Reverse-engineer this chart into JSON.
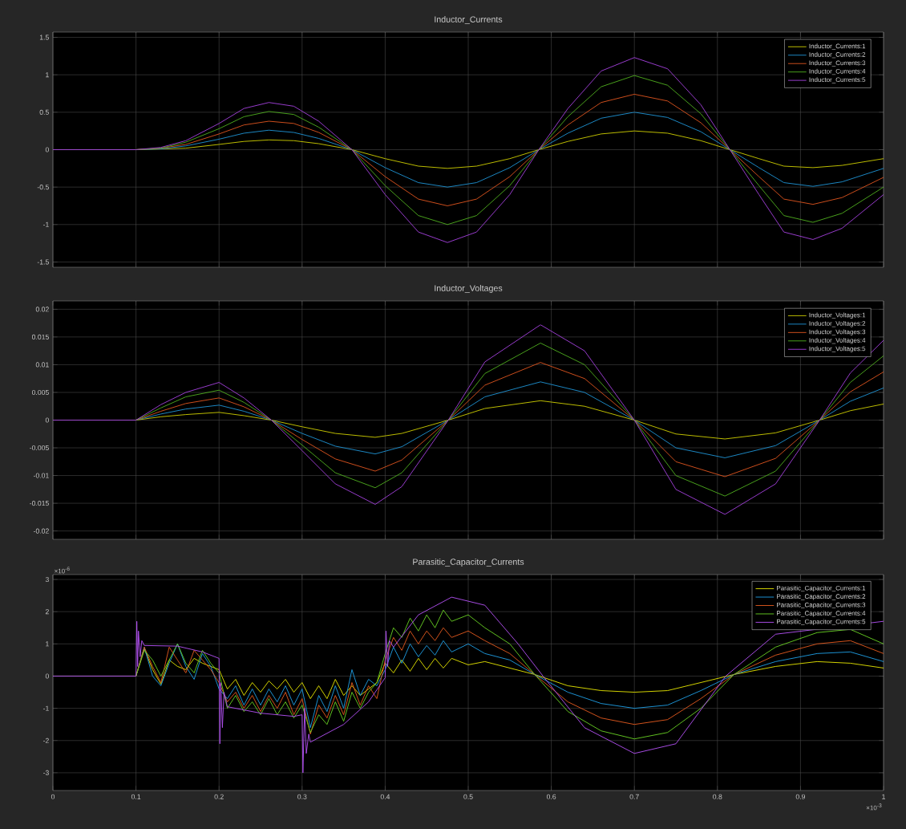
{
  "chart_data": [
    {
      "type": "line",
      "title": "Inductor_Currents",
      "grid": true,
      "legend": "top right",
      "tick_labels": "y",
      "xlim": [
        0,
        1
      ],
      "xticks": [
        0,
        0.1,
        0.2,
        0.3,
        0.4,
        0.5,
        0.6,
        0.7,
        0.8,
        0.9,
        1
      ],
      "ylim": [
        -1.57,
        1.57
      ],
      "yticks": [
        -1.5,
        -1,
        -0.5,
        0,
        0.5,
        1,
        1.5
      ],
      "x": [
        0,
        0.1,
        0.13,
        0.16,
        0.2,
        0.23,
        0.26,
        0.29,
        0.32,
        0.36,
        0.4,
        0.44,
        0.475,
        0.51,
        0.55,
        0.585,
        0.62,
        0.66,
        0.7,
        0.74,
        0.78,
        0.815,
        0.85,
        0.88,
        0.915,
        0.95,
        1.0
      ],
      "series": [
        {
          "name": "Inductor_Currents:1",
          "color": "#c8c800",
          "values": [
            0,
            0,
            0.01,
            0.02,
            0.07,
            0.11,
            0.13,
            0.12,
            0.08,
            0,
            -0.12,
            -0.22,
            -0.25,
            -0.22,
            -0.12,
            0,
            0.11,
            0.21,
            0.25,
            0.22,
            0.12,
            0,
            -0.12,
            -0.22,
            -0.24,
            -0.21,
            -0.12
          ]
        },
        {
          "name": "Inductor_Currents:2",
          "color": "#1e90d0",
          "values": [
            0,
            0,
            0.01,
            0.05,
            0.14,
            0.22,
            0.26,
            0.23,
            0.15,
            0,
            -0.24,
            -0.44,
            -0.5,
            -0.44,
            -0.24,
            0,
            0.22,
            0.42,
            0.5,
            0.43,
            0.24,
            0,
            -0.24,
            -0.44,
            -0.49,
            -0.43,
            -0.25
          ]
        },
        {
          "name": "Inductor_Currents:3",
          "color": "#d9531e",
          "values": [
            0,
            0,
            0.02,
            0.07,
            0.21,
            0.33,
            0.38,
            0.35,
            0.23,
            0,
            -0.36,
            -0.66,
            -0.75,
            -0.66,
            -0.36,
            0,
            0.33,
            0.63,
            0.74,
            0.65,
            0.36,
            0,
            -0.36,
            -0.66,
            -0.73,
            -0.64,
            -0.37
          ]
        },
        {
          "name": "Inductor_Currents:4",
          "color": "#4daa1e",
          "values": [
            0,
            0,
            0.02,
            0.1,
            0.28,
            0.44,
            0.51,
            0.47,
            0.3,
            0,
            -0.48,
            -0.88,
            -1.0,
            -0.88,
            -0.48,
            0,
            0.44,
            0.84,
            0.99,
            0.86,
            0.48,
            0,
            -0.48,
            -0.88,
            -0.97,
            -0.85,
            -0.5
          ]
        },
        {
          "name": "Inductor_Currents:5",
          "color": "#a040d8",
          "values": [
            0,
            0,
            0.03,
            0.12,
            0.35,
            0.55,
            0.63,
            0.58,
            0.38,
            0,
            -0.6,
            -1.1,
            -1.24,
            -1.1,
            -0.6,
            0,
            0.55,
            1.05,
            1.23,
            1.08,
            0.6,
            0,
            -0.6,
            -1.1,
            -1.2,
            -1.05,
            -0.6
          ]
        }
      ]
    },
    {
      "type": "line",
      "title": "Inductor_Voltages",
      "grid": true,
      "legend": "top right",
      "tick_labels": "y",
      "xlim": [
        0,
        1
      ],
      "xticks": [
        0,
        0.1,
        0.2,
        0.3,
        0.4,
        0.5,
        0.6,
        0.7,
        0.8,
        0.9,
        1
      ],
      "ylim": [
        -0.0215,
        0.0215
      ],
      "yticks": [
        -0.02,
        -0.015,
        -0.01,
        -0.005,
        0,
        0.005,
        0.01,
        0.015,
        0.02
      ],
      "x": [
        0,
        0.1,
        0.13,
        0.16,
        0.2,
        0.23,
        0.263,
        0.3,
        0.34,
        0.388,
        0.42,
        0.476,
        0.52,
        0.587,
        0.64,
        0.7,
        0.75,
        0.809,
        0.87,
        0.923,
        0.96,
        1.0
      ],
      "series": [
        {
          "name": "Inductor_Voltages:1",
          "color": "#c8c800",
          "values": [
            0,
            0,
            0.0006,
            0.001,
            0.0014,
            0.0008,
            0,
            -0.0012,
            -0.0024,
            -0.0031,
            -0.0024,
            0,
            0.0021,
            0.0035,
            0.0025,
            0,
            -0.0025,
            -0.0034,
            -0.0023,
            0,
            0.0017,
            0.0029
          ]
        },
        {
          "name": "Inductor_Voltages:2",
          "color": "#1e90d0",
          "values": [
            0,
            0,
            0.0011,
            0.002,
            0.0027,
            0.0016,
            0,
            -0.0024,
            -0.0047,
            -0.0061,
            -0.0048,
            0,
            0.0042,
            0.0069,
            0.005,
            0,
            -0.005,
            -0.0068,
            -0.0046,
            0,
            0.0034,
            0.0058
          ]
        },
        {
          "name": "Inductor_Voltages:3",
          "color": "#d9531e",
          "values": [
            0,
            0,
            0.0016,
            0.003,
            0.004,
            0.0024,
            0,
            -0.0035,
            -0.007,
            -0.0092,
            -0.0072,
            0,
            0.0063,
            0.0104,
            0.0075,
            0,
            -0.0075,
            -0.0102,
            -0.0069,
            0,
            0.0051,
            0.0087
          ]
        },
        {
          "name": "Inductor_Voltages:4",
          "color": "#4daa1e",
          "values": [
            0,
            0,
            0.0022,
            0.0042,
            0.0054,
            0.0032,
            0,
            -0.0045,
            -0.0095,
            -0.0122,
            -0.0095,
            0,
            0.0084,
            0.0139,
            0.01,
            0,
            -0.01,
            -0.0137,
            -0.0092,
            0,
            0.0068,
            0.0116
          ]
        },
        {
          "name": "Inductor_Voltages:5",
          "color": "#a040d8",
          "values": [
            0,
            0,
            0.0028,
            0.005,
            0.0068,
            0.004,
            0,
            -0.0055,
            -0.0115,
            -0.0152,
            -0.012,
            0,
            0.0105,
            0.0172,
            0.0125,
            0,
            -0.0125,
            -0.017,
            -0.0115,
            0,
            0.0085,
            0.0144
          ]
        }
      ]
    },
    {
      "type": "line",
      "title": "Parasitic_Capacitor_Currents",
      "grid": true,
      "legend": "top right",
      "xlim": [
        0,
        1
      ],
      "xticks": [
        0,
        0.1,
        0.2,
        0.3,
        0.4,
        0.5,
        0.6,
        0.7,
        0.8,
        0.9,
        1
      ],
      "ylim": [
        -3.55,
        3.15
      ],
      "yticks": [
        -3,
        -2,
        -1,
        0,
        1,
        2,
        3
      ],
      "annotations": [
        "×10$^{-6}$",
        "×10$^{-3}$"
      ],
      "x": [
        0,
        0.1,
        0.11,
        0.12,
        0.13,
        0.14,
        0.15,
        0.16,
        0.17,
        0.18,
        0.19,
        0.2,
        0.21,
        0.22,
        0.23,
        0.24,
        0.25,
        0.26,
        0.27,
        0.28,
        0.29,
        0.3,
        0.31,
        0.32,
        0.33,
        0.34,
        0.35,
        0.36,
        0.37,
        0.38,
        0.39,
        0.4,
        0.41,
        0.42,
        0.43,
        0.44,
        0.45,
        0.46,
        0.47,
        0.48,
        0.5,
        0.52,
        0.55,
        0.58,
        0.62,
        0.66,
        0.7,
        0.74,
        0.78,
        0.82,
        0.87,
        0.92,
        0.96,
        1.0
      ],
      "series": [
        {
          "name": "Parasitic_Capacitor_Currents:1",
          "color": "#e0e000",
          "values": [
            0,
            0,
            0.85,
            0.2,
            -0.25,
            0.5,
            0.3,
            0.2,
            0.55,
            0.4,
            0.3,
            0.2,
            -0.4,
            -0.1,
            -0.6,
            -0.2,
            -0.5,
            -0.15,
            -0.4,
            -0.1,
            -0.5,
            -0.2,
            -0.7,
            -0.3,
            -0.7,
            -0.1,
            -0.6,
            -0.3,
            -0.6,
            -0.4,
            -0.2,
            0.4,
            0.1,
            0.5,
            0.15,
            0.55,
            0.2,
            0.55,
            0.25,
            0.55,
            0.35,
            0.45,
            0.25,
            0.05,
            -0.3,
            -0.45,
            -0.5,
            -0.45,
            -0.2,
            0.05,
            0.3,
            0.45,
            0.4,
            0.25
          ]
        },
        {
          "name": "Parasitic_Capacitor_Currents:2",
          "color": "#1e9be0",
          "values": [
            0,
            0,
            0.9,
            0.0,
            -0.3,
            0.4,
            1.0,
            0.3,
            -0.1,
            0.7,
            0.3,
            -0.4,
            -0.7,
            -0.3,
            -0.9,
            -0.4,
            -0.9,
            -0.4,
            -0.8,
            -0.3,
            -0.9,
            -0.4,
            -1.6,
            -0.6,
            -1.1,
            -0.3,
            -1.0,
            0.2,
            -0.6,
            -0.1,
            -0.3,
            0.2,
            0.9,
            0.4,
            1.0,
            0.6,
            0.95,
            0.65,
            1.1,
            0.75,
            1.0,
            0.7,
            0.5,
            0.05,
            -0.5,
            -0.85,
            -1.0,
            -0.9,
            -0.45,
            0.05,
            0.45,
            0.7,
            0.75,
            0.45
          ]
        },
        {
          "name": "Parasitic_Capacitor_Currents:3",
          "color": "#e0581e",
          "values": [
            0,
            0,
            0.9,
            0.3,
            -0.2,
            0.9,
            0.5,
            0.1,
            0.8,
            0.5,
            0.2,
            -0.2,
            -0.8,
            -0.5,
            -1.0,
            -0.6,
            -1.1,
            -0.6,
            -1.0,
            -0.5,
            -1.2,
            -0.7,
            -1.8,
            -0.9,
            -1.3,
            -0.6,
            -1.2,
            -0.2,
            -0.9,
            -0.3,
            -0.7,
            0.5,
            1.2,
            0.8,
            1.4,
            1.0,
            1.4,
            1.1,
            1.5,
            1.2,
            1.4,
            1.1,
            0.7,
            0.05,
            -0.8,
            -1.3,
            -1.5,
            -1.35,
            -0.7,
            0.05,
            0.65,
            1.0,
            1.1,
            0.7
          ]
        },
        {
          "name": "Parasitic_Capacitor_Currents:4",
          "color": "#66cc22",
          "values": [
            0,
            0,
            0.8,
            0.5,
            0.0,
            0.5,
            1.0,
            0.4,
            0.1,
            0.8,
            0.4,
            0.1,
            -1.0,
            -0.6,
            -1.1,
            -0.8,
            -1.2,
            -0.7,
            -1.2,
            -0.8,
            -1.3,
            -0.9,
            -1.75,
            -1.2,
            -1.5,
            -0.8,
            -1.4,
            -0.5,
            -1.0,
            -0.5,
            -0.2,
            0.7,
            1.5,
            1.2,
            1.8,
            1.4,
            1.9,
            1.5,
            2.05,
            1.7,
            1.9,
            1.5,
            1.0,
            0.05,
            -1.1,
            -1.7,
            -1.95,
            -1.75,
            -1.0,
            0.05,
            0.9,
            1.35,
            1.45,
            1.0
          ]
        },
        {
          "name": "Parasitic_Capacitor_Currents:5",
          "color": "#b050f0",
          "x": [
            0,
            0.1,
            0.101,
            0.102,
            0.103,
            0.105,
            0.107,
            0.11,
            0.15,
            0.18,
            0.2,
            0.201,
            0.202,
            0.204,
            0.206,
            0.21,
            0.25,
            0.29,
            0.3,
            0.301,
            0.303,
            0.305,
            0.308,
            0.31,
            0.35,
            0.38,
            0.4,
            0.401,
            0.403,
            0.405,
            0.41,
            0.44,
            0.48,
            0.52,
            0.56,
            0.59,
            0.64,
            0.7,
            0.75,
            0.81,
            0.87,
            1.0
          ],
          "values": [
            0,
            0,
            1.7,
            0.3,
            1.4,
            0.6,
            1.1,
            0.95,
            0.93,
            0.75,
            0.55,
            -2.1,
            -0.2,
            -1.6,
            -0.5,
            -0.95,
            -1.15,
            -1.25,
            -1.2,
            -3.0,
            -1.0,
            -2.4,
            -1.8,
            -2.05,
            -1.5,
            -0.8,
            -0.05,
            1.4,
            0.3,
            1.1,
            0.9,
            1.9,
            2.45,
            2.2,
            1.0,
            0,
            -1.6,
            -2.4,
            -2.1,
            0,
            1.3,
            1.7
          ]
        }
      ]
    }
  ]
}
